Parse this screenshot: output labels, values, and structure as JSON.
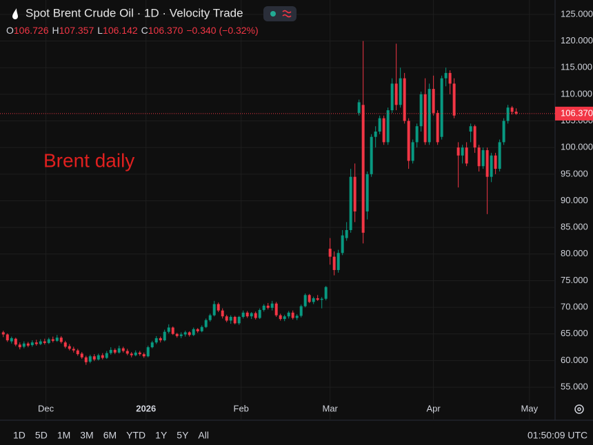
{
  "chart_data": {
    "type": "candlestick",
    "title": "Spot Brent Crude Oil · 1D · Velocity Trade",
    "ohlc_legend": [
      {
        "label": "O",
        "value": "106.726"
      },
      {
        "label": "H",
        "value": "107.357"
      },
      {
        "label": "L",
        "value": "106.142"
      },
      {
        "label": "C",
        "value": "106.370"
      }
    ],
    "change": "−0.340 (−0.32%)",
    "annotation": "Brent daily",
    "last_price": {
      "value": 106.37,
      "label": "106.370"
    },
    "up_color": "#089981",
    "down_color": "#f23645",
    "ylim": [
      48.8,
      127.7
    ],
    "yticks": [
      {
        "value": 55,
        "label": "55.000"
      },
      {
        "value": 60,
        "label": "60.000"
      },
      {
        "value": 65,
        "label": "65.000"
      },
      {
        "value": 70,
        "label": "70.000"
      },
      {
        "value": 75,
        "label": "75.000"
      },
      {
        "value": 80,
        "label": "80.000"
      },
      {
        "value": 85,
        "label": "85.000"
      },
      {
        "value": 90,
        "label": "90.000"
      },
      {
        "value": 95,
        "label": "95.000"
      },
      {
        "value": 100,
        "label": "100.000"
      },
      {
        "value": 105,
        "label": "105.000"
      },
      {
        "value": 110,
        "label": "110.000"
      },
      {
        "value": 115,
        "label": "115.000"
      },
      {
        "value": 120,
        "label": "120.000"
      },
      {
        "value": 125,
        "label": "125.000"
      }
    ],
    "xlim": [
      -0.8,
      133.4
    ],
    "xticks": [
      {
        "value": 10.3,
        "label": "Dec"
      },
      {
        "value": 34.5,
        "label": "2026"
      },
      {
        "value": 57.5,
        "label": "Feb"
      },
      {
        "value": 79,
        "label": "Mar"
      },
      {
        "value": 104,
        "label": "Apr"
      },
      {
        "value": 127.2,
        "label": "May"
      }
    ],
    "grid": true,
    "ohlc": [
      [
        65.3,
        65.6,
        64.4,
        64.9
      ],
      [
        64.9,
        65.1,
        63.5,
        63.8
      ],
      [
        63.6,
        64.5,
        63.2,
        64.2
      ],
      [
        64.1,
        64.3,
        62.7,
        63.0
      ],
      [
        63.0,
        63.4,
        62.1,
        62.5
      ],
      [
        62.6,
        63.6,
        62.3,
        63.2
      ],
      [
        63.2,
        63.5,
        62.5,
        62.8
      ],
      [
        62.9,
        63.8,
        62.6,
        63.4
      ],
      [
        63.4,
        63.9,
        62.8,
        63.1
      ],
      [
        63.1,
        64.0,
        62.9,
        63.6
      ],
      [
        63.6,
        64.1,
        63.0,
        63.3
      ],
      [
        63.3,
        64.3,
        63.1,
        64.0
      ],
      [
        64.0,
        64.5,
        63.4,
        63.7
      ],
      [
        63.7,
        64.8,
        63.5,
        64.3
      ],
      [
        64.3,
        64.6,
        63.2,
        63.5
      ],
      [
        63.4,
        63.7,
        62.3,
        62.6
      ],
      [
        62.7,
        63.1,
        61.9,
        62.2
      ],
      [
        62.2,
        62.6,
        61.5,
        61.9
      ],
      [
        61.9,
        62.2,
        60.9,
        61.2
      ],
      [
        61.3,
        61.6,
        60.3,
        60.6
      ],
      [
        60.6,
        60.9,
        59.2,
        59.7
      ],
      [
        59.8,
        61.1,
        59.5,
        60.8
      ],
      [
        60.8,
        61.2,
        59.9,
        60.2
      ],
      [
        60.2,
        61.3,
        60.0,
        61.0
      ],
      [
        61.0,
        61.4,
        60.2,
        60.5
      ],
      [
        60.5,
        61.8,
        60.3,
        61.4
      ],
      [
        61.4,
        62.5,
        61.1,
        62.0
      ],
      [
        62.0,
        62.3,
        61.2,
        61.5
      ],
      [
        61.5,
        62.8,
        61.3,
        62.3
      ],
      [
        62.3,
        62.6,
        61.5,
        61.8
      ],
      [
        61.8,
        62.2,
        61.0,
        61.3
      ],
      [
        61.3,
        61.6,
        60.6,
        61.0
      ],
      [
        61.0,
        61.9,
        60.8,
        61.5
      ],
      [
        61.5,
        61.8,
        60.9,
        61.2
      ],
      [
        61.2,
        61.5,
        60.5,
        60.8
      ],
      [
        60.8,
        62.8,
        60.6,
        62.5
      ],
      [
        62.5,
        63.7,
        62.3,
        63.4
      ],
      [
        63.4,
        64.6,
        63.1,
        64.2
      ],
      [
        64.2,
        64.5,
        63.4,
        63.8
      ],
      [
        63.8,
        65.8,
        63.6,
        65.4
      ],
      [
        65.4,
        66.8,
        65.1,
        66.2
      ],
      [
        66.2,
        66.4,
        64.8,
        65.0
      ],
      [
        65.0,
        65.2,
        64.3,
        64.6
      ],
      [
        64.6,
        65.3,
        64.2,
        64.9
      ],
      [
        64.9,
        65.6,
        64.5,
        65.3
      ],
      [
        65.3,
        65.5,
        64.5,
        64.8
      ],
      [
        64.8,
        66.2,
        64.6,
        65.9
      ],
      [
        65.9,
        66.1,
        65.2,
        65.5
      ],
      [
        65.5,
        66.6,
        65.3,
        66.3
      ],
      [
        66.3,
        67.9,
        66.1,
        67.6
      ],
      [
        67.6,
        68.8,
        67.3,
        68.5
      ],
      [
        68.5,
        71.2,
        68.3,
        70.6
      ],
      [
        70.6,
        70.9,
        69.1,
        69.4
      ],
      [
        69.4,
        69.8,
        67.9,
        68.3
      ],
      [
        68.3,
        68.6,
        67.2,
        67.5
      ],
      [
        67.5,
        68.5,
        66.9,
        68.2
      ],
      [
        68.2,
        68.4,
        66.8,
        67.0
      ],
      [
        67.0,
        68.4,
        66.7,
        68.2
      ],
      [
        68.2,
        69.4,
        67.9,
        69.0
      ],
      [
        69.0,
        69.3,
        68.0,
        68.3
      ],
      [
        68.3,
        69.1,
        67.8,
        68.9
      ],
      [
        68.9,
        69.2,
        67.7,
        68.0
      ],
      [
        68.0,
        69.8,
        67.8,
        69.5
      ],
      [
        69.5,
        70.6,
        69.2,
        70.3
      ],
      [
        70.3,
        70.8,
        69.6,
        69.9
      ],
      [
        69.9,
        71.2,
        69.4,
        70.7
      ],
      [
        70.7,
        71.0,
        68.2,
        68.5
      ],
      [
        68.5,
        68.8,
        67.5,
        67.8
      ],
      [
        67.8,
        68.6,
        67.4,
        68.3
      ],
      [
        68.3,
        69.3,
        67.9,
        69.0
      ],
      [
        69.0,
        69.4,
        67.7,
        68.0
      ],
      [
        68.0,
        68.7,
        67.6,
        68.4
      ],
      [
        68.4,
        70.5,
        68.1,
        70.2
      ],
      [
        70.2,
        72.6,
        70.0,
        72.3
      ],
      [
        72.3,
        72.5,
        70.8,
        71.0
      ],
      [
        71.0,
        72.0,
        70.6,
        71.7
      ],
      [
        71.7,
        72.3,
        71.2,
        71.4
      ],
      [
        71.4,
        71.9,
        69.8,
        71.6
      ],
      [
        71.6,
        74.0,
        71.3,
        73.8
      ],
      [
        81.0,
        83.0,
        78.0,
        79.5
      ],
      [
        79.5,
        80.5,
        76.0,
        77.0
      ],
      [
        77.0,
        80.8,
        76.5,
        80.2
      ],
      [
        80.2,
        84.5,
        79.8,
        83.5
      ],
      [
        83.0,
        86.0,
        82.5,
        84.5
      ],
      [
        84.5,
        96.0,
        84.0,
        94.5
      ],
      [
        94.5,
        97.0,
        86.0,
        88.0
      ],
      [
        106.5,
        109.0,
        106.0,
        108.5
      ],
      [
        108.0,
        120.0,
        82.0,
        84.0
      ],
      [
        88.0,
        95.5,
        86.5,
        95.0
      ],
      [
        95.0,
        102.5,
        94.5,
        102.0
      ],
      [
        102.0,
        104.0,
        100.0,
        103.0
      ],
      [
        103.0,
        106.0,
        102.5,
        105.5
      ],
      [
        105.5,
        106.0,
        100.5,
        101.0
      ],
      [
        101.0,
        107.5,
        100.5,
        107.0
      ],
      [
        107.0,
        113.0,
        106.5,
        112.0
      ],
      [
        112.0,
        119.5,
        107.0,
        108.0
      ],
      [
        108.0,
        115.0,
        107.5,
        113.0
      ],
      [
        113.0,
        114.0,
        104.5,
        105.0
      ],
      [
        105.0,
        105.5,
        96.0,
        97.5
      ],
      [
        97.5,
        101.5,
        97.0,
        101.0
      ],
      [
        101.0,
        104.5,
        100.0,
        104.0
      ],
      [
        104.0,
        110.5,
        103.0,
        110.0
      ],
      [
        110.0,
        113.0,
        100.5,
        101.0
      ],
      [
        101.0,
        112.0,
        100.5,
        111.0
      ],
      [
        111.0,
        113.5,
        106.0,
        106.5
      ],
      [
        106.5,
        107.0,
        100.5,
        101.0
      ],
      [
        102.0,
        113.5,
        101.5,
        113.0
      ],
      [
        113.0,
        115.0,
        111.5,
        114.0
      ],
      [
        114.0,
        114.5,
        110.0,
        112.0
      ],
      [
        112.0,
        113.0,
        105.5,
        106.0
      ],
      [
        100.0,
        101.0,
        92.5,
        98.5
      ],
      [
        98.5,
        100.5,
        97.0,
        100.0
      ],
      [
        100.0,
        101.0,
        96.5,
        97.0
      ],
      [
        103.0,
        104.5,
        101.0,
        104.0
      ],
      [
        104.0,
        104.3,
        99.0,
        100.0
      ],
      [
        100.0,
        100.5,
        95.5,
        96.5
      ],
      [
        96.5,
        100.0,
        96.0,
        99.5
      ],
      [
        99.5,
        100.0,
        87.5,
        94.5
      ],
      [
        94.5,
        99.0,
        93.5,
        98.5
      ],
      [
        98.5,
        99.0,
        95.0,
        96.0
      ],
      [
        96.0,
        101.5,
        95.5,
        101.0
      ],
      [
        101.0,
        105.5,
        100.5,
        105.0
      ],
      [
        105.0,
        108.0,
        104.5,
        107.5
      ],
      [
        107.5,
        107.8,
        106.2,
        106.7
      ],
      [
        106.726,
        107.357,
        106.142,
        106.37
      ]
    ],
    "timeframes": [
      "1D",
      "5D",
      "1M",
      "3M",
      "6M",
      "YTD",
      "1Y",
      "5Y",
      "All"
    ],
    "clock": "01:50:09 UTC"
  }
}
